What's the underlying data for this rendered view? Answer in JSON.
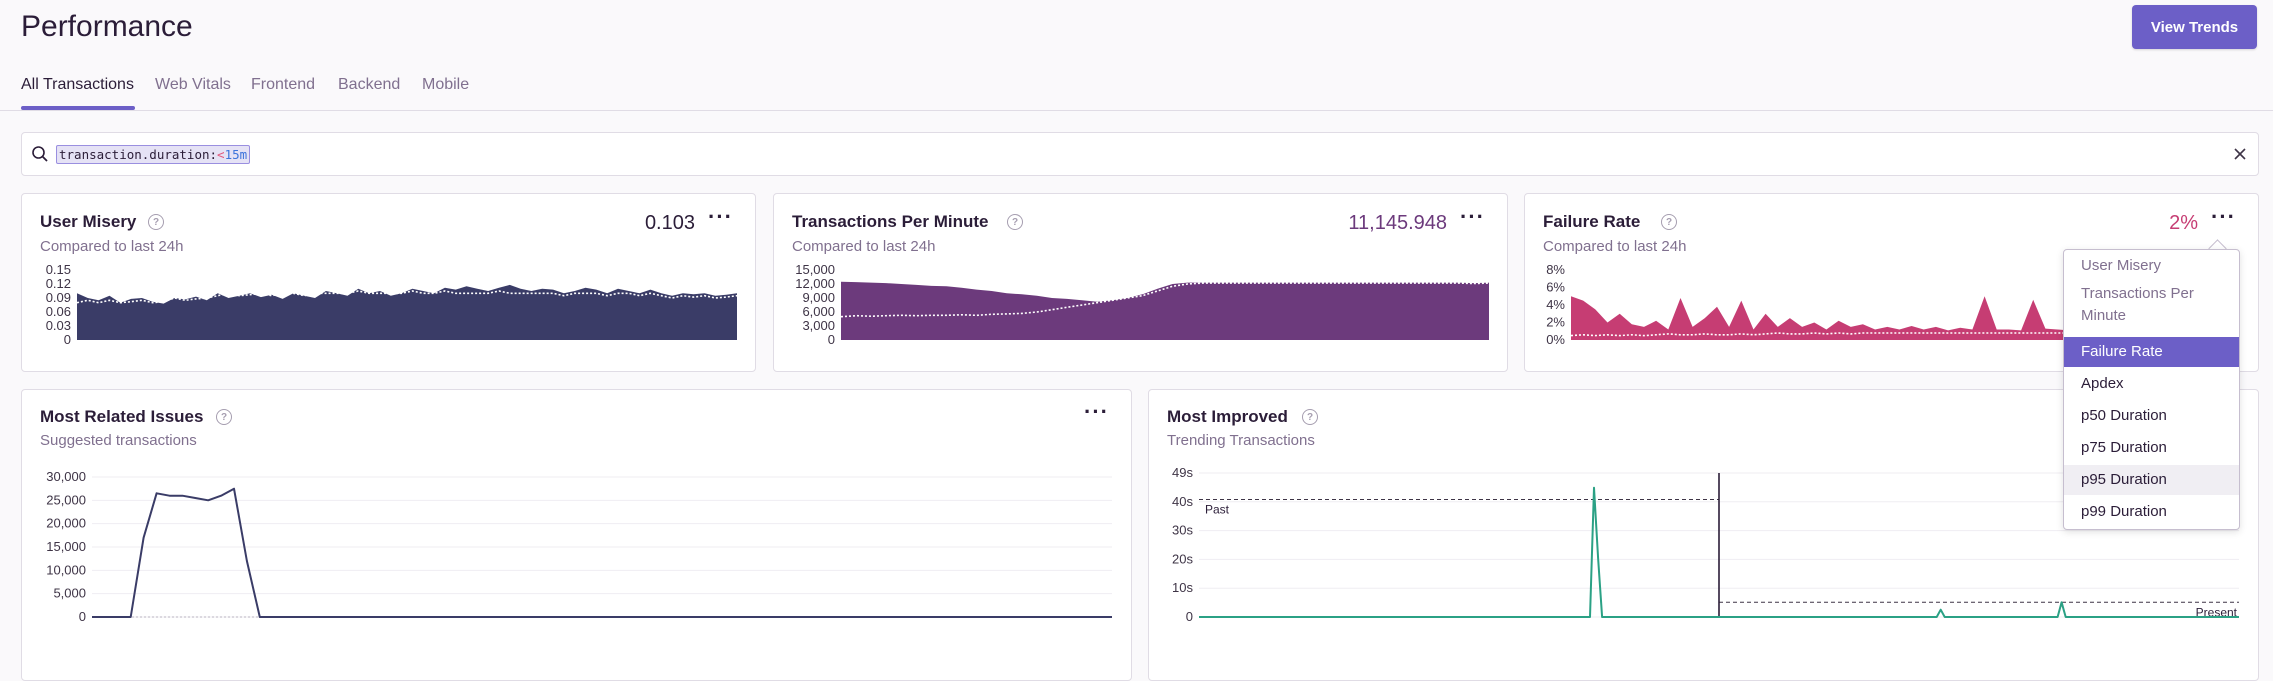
{
  "page": {
    "title": "Performance",
    "view_trends_label": "View Trends"
  },
  "tabs": [
    "All Transactions",
    "Web Vitals",
    "Frontend",
    "Backend",
    "Mobile"
  ],
  "search": {
    "field": "transaction.duration",
    "colon": ":",
    "operator": "<",
    "value": "15m"
  },
  "cards": {
    "user_misery": {
      "title": "User Misery",
      "subtitle": "Compared to last 24h",
      "value": "0.103",
      "color": "#3a3c67"
    },
    "tpm": {
      "title": "Transactions Per Minute",
      "subtitle": "Compared to last 24h",
      "value": "11,145.948",
      "color": "#6c3a7c"
    },
    "failure_rate": {
      "title": "Failure Rate",
      "subtitle": "Compared to last 24h",
      "value": "2%",
      "color": "#c63d73"
    },
    "most_related": {
      "title": "Most Related Issues",
      "subtitle": "Suggested transactions"
    },
    "most_improved": {
      "title": "Most Improved",
      "subtitle": "Trending Transactions",
      "past_label": "Past",
      "present_label": "Present"
    }
  },
  "menu": {
    "items": [
      "User Misery",
      "Transactions Per Minute",
      "Failure Rate",
      "Apdex",
      "p50 Duration",
      "p75 Duration",
      "p95 Duration",
      "p99 Duration"
    ],
    "selected": "Failure Rate",
    "hovered": "p95 Duration"
  },
  "chart_data": [
    {
      "type": "area",
      "name": "user_misery",
      "yticks": [
        "0.15",
        "0.12",
        "0.09",
        "0.06",
        "0.03",
        "0"
      ],
      "ylim": [
        0,
        0.15
      ],
      "values": [
        0.1,
        0.09,
        0.085,
        0.095,
        0.08,
        0.088,
        0.09,
        0.082,
        0.078,
        0.09,
        0.087,
        0.093,
        0.085,
        0.1,
        0.09,
        0.095,
        0.1,
        0.092,
        0.097,
        0.088,
        0.1,
        0.095,
        0.09,
        0.105,
        0.1,
        0.095,
        0.11,
        0.1,
        0.105,
        0.095,
        0.1,
        0.11,
        0.105,
        0.1,
        0.112,
        0.108,
        0.115,
        0.11,
        0.105,
        0.112,
        0.118,
        0.11,
        0.105,
        0.11,
        0.108,
        0.1,
        0.105,
        0.112,
        0.108,
        0.1,
        0.11,
        0.105,
        0.1,
        0.108,
        0.1,
        0.095,
        0.1,
        0.098,
        0.1,
        0.095,
        0.097,
        0.1
      ],
      "compare": [
        0.08,
        0.085,
        0.08,
        0.085,
        0.08,
        0.082,
        0.085,
        0.08,
        0.082,
        0.09,
        0.085,
        0.088,
        0.09,
        0.095,
        0.1,
        0.095,
        0.097,
        0.1,
        0.095,
        0.1,
        0.1,
        0.095,
        0.1,
        0.1,
        0.1,
        0.1,
        0.105,
        0.1,
        0.1,
        0.1,
        0.1,
        0.105,
        0.1,
        0.1,
        0.105,
        0.1,
        0.1,
        0.1,
        0.1,
        0.105,
        0.1,
        0.1,
        0.1,
        0.1,
        0.1,
        0.095,
        0.1,
        0.1,
        0.1,
        0.095,
        0.1,
        0.1,
        0.095,
        0.1,
        0.095,
        0.09,
        0.095,
        0.092,
        0.095,
        0.09,
        0.092,
        0.095
      ]
    },
    {
      "type": "area",
      "name": "tpm",
      "yticks": [
        "15,000",
        "12,000",
        "9,000",
        "6,000",
        "3,000",
        "0"
      ],
      "ylim": [
        0,
        15000
      ],
      "values": [
        12500,
        12400,
        12300,
        12200,
        12000,
        11800,
        11600,
        11500,
        11200,
        10800,
        10500,
        10000,
        9800,
        9500,
        9000,
        8800,
        8500,
        8200,
        8500,
        9000,
        9800,
        11000,
        12000,
        12300,
        12300,
        12300,
        12300,
        12300,
        12300,
        12300,
        12300,
        12300,
        12300,
        12300,
        12300,
        12300,
        12300,
        12300,
        12300,
        12300,
        12300,
        12300,
        12200,
        12300
      ],
      "compare": [
        5000,
        5200,
        5100,
        5200,
        5300,
        5200,
        5300,
        5300,
        5400,
        5300,
        5500,
        5600,
        5700,
        6000,
        6500,
        7000,
        7500,
        8000,
        8500,
        9000,
        9500,
        10500,
        11500,
        12000,
        12200,
        12200,
        12200,
        12200,
        12200,
        12200,
        12200,
        12200,
        12200,
        12200,
        12200,
        12200,
        12200,
        12200,
        12200,
        12200,
        12200,
        12200,
        12100,
        12200
      ]
    },
    {
      "type": "area",
      "name": "failure_rate",
      "yticks": [
        "8%",
        "6%",
        "4%",
        "2%",
        "0%"
      ],
      "ylim": [
        0,
        8
      ],
      "values": [
        5,
        4.5,
        3.5,
        2,
        3,
        1.8,
        1.5,
        2.2,
        1.2,
        4.8,
        1.5,
        2.5,
        3.8,
        1.5,
        4.5,
        1.2,
        3,
        1.5,
        2.5,
        1.5,
        2,
        1.2,
        2.2,
        1.5,
        1.8,
        1.2,
        1.5,
        1.2,
        1.6,
        1.2,
        1.5,
        1.1,
        1.4,
        1.2,
        5,
        1.2,
        1.2,
        1.1,
        4.6,
        1.3,
        1.2,
        1.1,
        1.3,
        1.2,
        1.2,
        1.1,
        1.2,
        1.1,
        1.2,
        1.1,
        1.2,
        1.1,
        1.2,
        1.1,
        1.2,
        1.1
      ],
      "compare": [
        0.5,
        0.6,
        0.5,
        0.6,
        0.5,
        0.6,
        0.5,
        0.6,
        0.7,
        0.6,
        0.6,
        0.7,
        0.6,
        0.6,
        0.7,
        0.6,
        0.7,
        0.8,
        0.7,
        0.7,
        0.8,
        0.7,
        0.8,
        0.7,
        0.8,
        0.8,
        0.8,
        0.8,
        0.8,
        0.8,
        0.8,
        0.8,
        0.8,
        0.8,
        0.8,
        0.8,
        0.8,
        0.8,
        0.8,
        0.8,
        0.8,
        0.8,
        0.8,
        0.8,
        0.8,
        0.8,
        0.8,
        0.8,
        0.8,
        0.8,
        0.8,
        0.8,
        0.8,
        0.8,
        0.8,
        0.8
      ]
    },
    {
      "type": "line",
      "name": "most_related",
      "yticks": [
        "30,000",
        "25,000",
        "20,000",
        "15,000",
        "10,000",
        "5,000",
        "0"
      ],
      "ylim": [
        0,
        30000
      ],
      "values": [
        0,
        0,
        0,
        0,
        17000,
        26500,
        26000,
        26000,
        25500,
        25000,
        26000,
        27500,
        12000,
        0,
        0,
        0,
        0,
        0,
        0,
        0,
        0,
        0,
        0,
        0,
        0,
        0,
        0,
        0,
        0,
        0,
        0,
        0,
        0,
        0,
        0,
        0,
        0,
        0,
        0,
        0,
        0,
        0,
        0,
        0,
        0,
        0,
        0,
        0,
        0,
        0,
        0,
        0,
        0,
        0,
        0,
        0,
        0,
        0,
        0,
        0,
        0,
        0,
        0,
        0,
        0,
        0,
        0,
        0,
        0,
        0,
        0,
        0,
        0,
        0,
        0,
        0,
        0,
        0,
        0,
        0
      ]
    },
    {
      "type": "line",
      "name": "most_improved",
      "yticks": [
        "49s",
        "40s",
        "30s",
        "20s",
        "10s",
        "0"
      ],
      "ylim": [
        0,
        49
      ],
      "values": [
        0,
        0,
        0,
        0,
        0,
        0,
        0,
        0,
        0,
        0,
        0,
        0,
        0,
        0,
        0,
        0,
        0,
        0,
        0,
        0,
        0,
        0,
        0,
        0,
        0,
        0,
        0,
        0,
        0,
        0,
        0,
        0,
        0,
        0,
        0,
        0,
        0,
        0,
        0,
        0,
        0,
        0,
        0,
        0,
        0,
        0,
        0,
        0,
        0,
        0,
        0,
        0,
        0,
        0,
        0,
        0,
        0,
        0,
        0,
        0,
        0,
        0,
        0,
        0,
        0,
        0,
        0,
        0,
        0,
        0,
        0,
        0,
        0,
        0,
        0,
        0,
        0,
        0,
        0,
        0,
        0,
        0,
        0,
        0,
        0,
        0,
        0,
        0,
        0,
        0,
        0,
        0,
        0,
        0,
        0,
        0,
        0,
        0,
        44,
        20,
        0,
        0,
        0,
        0,
        0,
        0,
        0,
        0,
        0,
        0,
        0,
        0,
        0,
        0,
        0,
        0,
        0,
        0,
        0,
        0,
        0,
        0,
        0,
        0,
        0,
        0,
        0,
        0,
        0,
        0,
        0,
        0,
        0,
        0,
        0,
        0,
        0,
        0,
        0,
        0,
        0,
        0,
        0,
        0,
        0,
        0,
        0,
        0,
        0,
        0,
        0,
        0,
        0,
        0,
        0,
        0,
        0,
        0,
        0,
        0,
        0,
        0,
        0,
        0,
        0,
        0,
        0,
        0,
        0,
        0,
        0,
        0,
        0,
        0,
        0,
        0,
        0,
        0,
        0,
        0,
        0,
        0,
        0,
        0,
        2.5,
        0,
        0,
        0,
        0,
        0,
        0,
        0,
        0,
        0,
        0,
        0,
        0,
        0,
        0,
        0,
        0,
        0,
        0,
        0,
        0,
        0,
        0,
        0,
        0,
        0,
        0,
        0,
        0,
        0,
        5,
        0,
        0,
        0,
        0,
        0,
        0,
        0,
        0,
        0,
        0,
        0,
        0,
        0,
        0,
        0,
        0,
        0,
        0,
        0,
        0,
        0,
        0,
        0,
        0,
        0,
        0,
        0,
        0,
        0,
        0,
        0,
        0,
        0,
        0,
        0,
        0,
        0,
        0,
        0,
        0,
        0,
        0,
        0,
        0
      ],
      "past_level": 40,
      "present_level": 5
    }
  ]
}
